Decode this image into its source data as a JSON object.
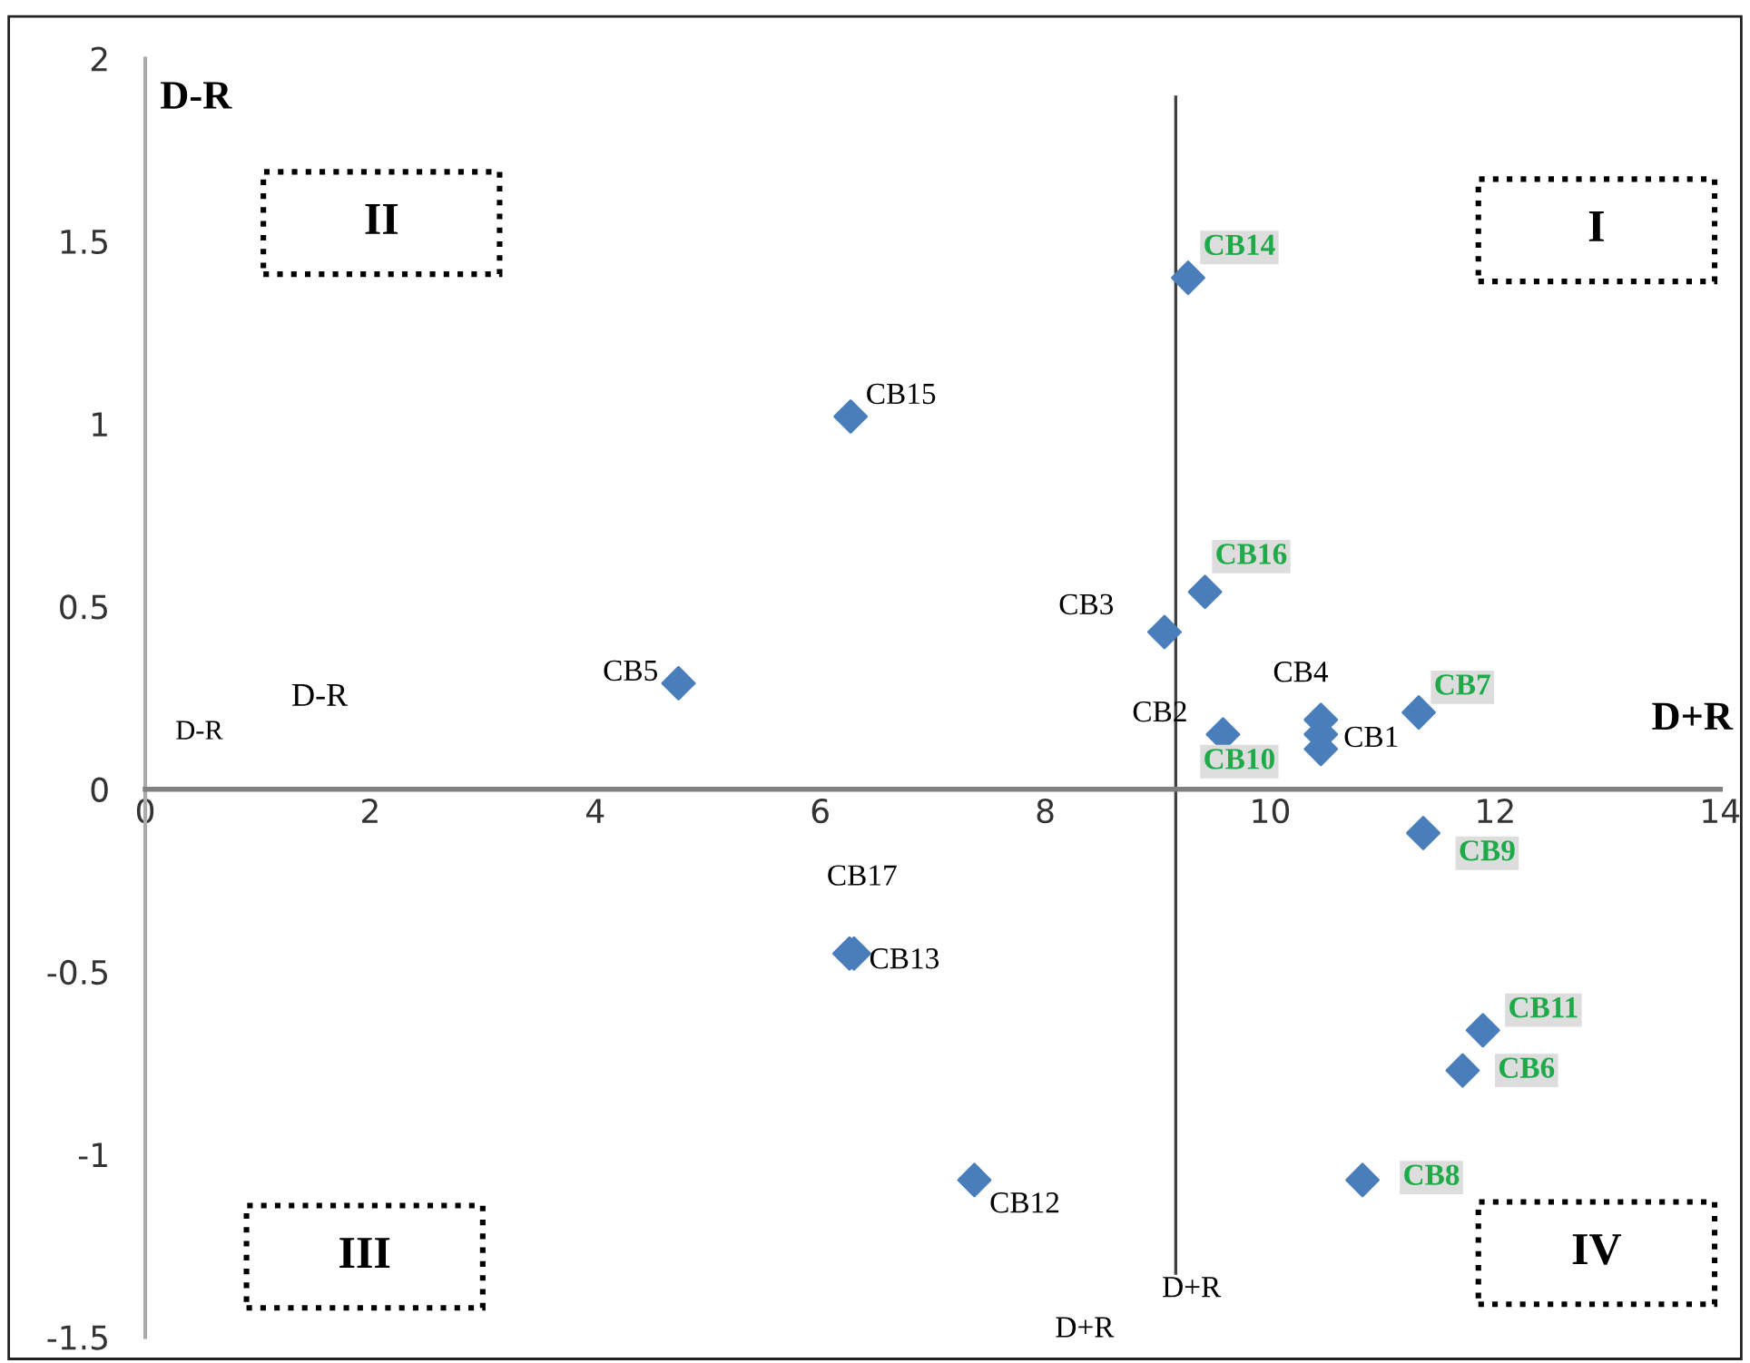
{
  "chart_data": {
    "type": "scatter",
    "marker": "diamond",
    "xlim": [
      0,
      14
    ],
    "xticks": [
      0,
      2,
      4,
      6,
      8,
      10,
      12,
      14
    ],
    "ylim": [
      -1.5,
      2
    ],
    "yticks": [
      -1.5,
      -1,
      -0.5,
      0,
      0.5,
      1,
      1.5,
      2
    ],
    "grid": false,
    "series": [
      {
        "color": "#4a7ebb",
        "x": [
          10.45,
          9.58,
          9.06,
          10.45,
          4.74,
          6.27,
          6.26,
          7.37,
          6.3
        ],
        "values": [
          0.15,
          0.15,
          0.43,
          0.19,
          0.29,
          1.02,
          -0.45,
          -1.07,
          -0.45
        ],
        "value_labels": [
          "CB1",
          "CB2",
          "CB3",
          "CB4",
          "CB5",
          "CB15",
          "CB17",
          "CB12",
          "CB13"
        ]
      },
      {
        "color": "#4a7ebb",
        "x": [
          9.27,
          9.42,
          11.32,
          10.45,
          11.36,
          11.89,
          11.71,
          10.82
        ],
        "values": [
          1.4,
          0.54,
          0.21,
          0.11,
          -0.12,
          -0.66,
          -0.77,
          -1.07
        ],
        "value_labels": [
          "CB14",
          "CB16",
          "CB7",
          "CB10",
          "CB9",
          "CB11",
          "CB6",
          "CB8"
        ]
      }
    ],
    "ref_lines": [
      {
        "axis": "x",
        "value": 9.16,
        "color": "#404040"
      }
    ],
    "annotations": [
      "D-R",
      "D+R",
      "II",
      "I",
      "III",
      "IV",
      "D-R",
      "D-R",
      "D+R",
      "D+R"
    ]
  }
}
